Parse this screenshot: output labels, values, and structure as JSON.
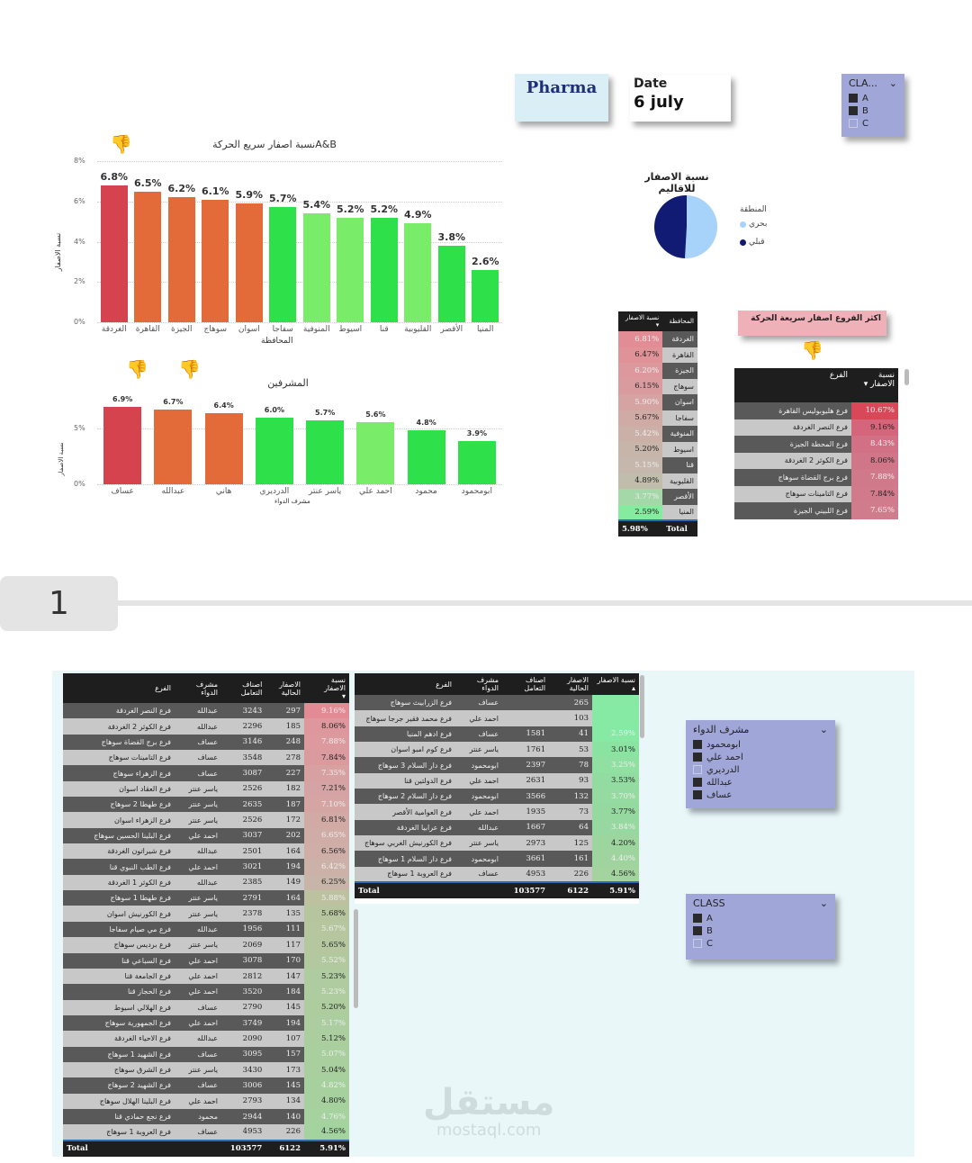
{
  "header": {
    "title": "Pharma",
    "date_label": "Date",
    "date_value": "6 july"
  },
  "class_slicer_top": {
    "title": "CLA...",
    "items": [
      {
        "label": "A",
        "checked": true
      },
      {
        "label": "B",
        "checked": true
      },
      {
        "label": "C",
        "checked": false
      }
    ]
  },
  "page_tab": {
    "number": "1"
  },
  "watermark": {
    "arabic": "مستقل",
    "english": "mostaql.com"
  },
  "chart_data": [
    {
      "type": "bar",
      "title": "نسبة اصفار سريع الحركةA&B",
      "xlabel": "المحافظة",
      "ylabel": "نسبة الاصفار",
      "ylim": [
        0,
        8
      ],
      "yticks": [
        "0%",
        "2%",
        "4%",
        "6%",
        "8%"
      ],
      "categories": [
        "الغردقة",
        "القاهرة",
        "الجيزة",
        "سوهاج",
        "اسوان",
        "سفاجا",
        "المنوفية",
        "اسيوط",
        "قنا",
        "القليوبية",
        "الأقصر",
        "المنيا"
      ],
      "values": [
        6.8,
        6.5,
        6.2,
        6.1,
        5.9,
        5.7,
        5.4,
        5.2,
        5.2,
        4.9,
        3.8,
        2.6
      ],
      "labels": [
        "6.8%",
        "6.5%",
        "6.2%",
        "6.1%",
        "5.9%",
        "5.7%",
        "5.4%",
        "5.2%",
        "5.2%",
        "4.9%",
        "3.8%",
        "2.6%"
      ],
      "colors": [
        "#d5434f",
        "#e36b3a",
        "#e36b3a",
        "#e36b3a",
        "#e36b3a",
        "#2ee04a",
        "#79ec6a",
        "#79ec6a",
        "#2ee04a",
        "#79ec6a",
        "#2ee04a",
        "#2ee04a"
      ],
      "grid": true
    },
    {
      "type": "bar",
      "title": "المشرفين",
      "xlabel": "مشرف الدواء",
      "ylabel": "نسبة الاصفار",
      "ylim": [
        0,
        7.5
      ],
      "yticks": [
        "0%",
        "5%"
      ],
      "categories": [
        "عساف",
        "عبدالله",
        "هاني",
        "الدرديري",
        "ياسر عنتر",
        "احمد علي",
        "محمود",
        "ابومحمود"
      ],
      "values": [
        6.9,
        6.7,
        6.4,
        6.0,
        5.7,
        5.6,
        4.8,
        3.9
      ],
      "labels": [
        "6.9%",
        "6.7%",
        "6.4%",
        "6.0%",
        "5.7%",
        "5.6%",
        "4.8%",
        "3.9%"
      ],
      "colors": [
        "#d5434f",
        "#e36b3a",
        "#e36b3a",
        "#2ee04a",
        "#2ee04a",
        "#79ec6a",
        "#2ee04a",
        "#2ee04a"
      ],
      "grid": true
    },
    {
      "type": "pie",
      "title": "نسبة الاصفار للاقاليم",
      "legend_title": "المنطقة",
      "categories": [
        "بحري",
        "قبلي"
      ],
      "values": [
        51,
        49
      ],
      "colors": [
        "#a7d3fb",
        "#121b73"
      ],
      "legend_position": "right"
    },
    {
      "type": "table",
      "title": "governorate-zero-rate",
      "columns": [
        "نسبة الاصفار",
        "المحافظة"
      ],
      "rows": [
        [
          "6.81%",
          "الغردقة"
        ],
        [
          "6.47%",
          "القاهرة"
        ],
        [
          "6.20%",
          "الجيزة"
        ],
        [
          "6.15%",
          "سوهاج"
        ],
        [
          "5.90%",
          "اسوان"
        ],
        [
          "5.67%",
          "سفاجا"
        ],
        [
          "5.42%",
          "المنوفية"
        ],
        [
          "5.20%",
          "اسيوط"
        ],
        [
          "5.15%",
          "قنا"
        ],
        [
          "4.89%",
          "القليوبية"
        ],
        [
          "3.77%",
          "الأقصر"
        ],
        [
          "2.59%",
          "المنيا"
        ]
      ],
      "total": [
        "5.98%",
        "Total"
      ]
    }
  ],
  "gov_table": {
    "headers": {
      "rate": "نسبة الاصفار",
      "gov": "المحافظة"
    },
    "rows": [
      {
        "gov": "الغردقة",
        "rate": "6.81%",
        "bg": "#e28c95"
      },
      {
        "gov": "القاهرة",
        "rate": "6.47%",
        "bg": "#e09299"
      },
      {
        "gov": "الجيزة",
        "rate": "6.20%",
        "bg": "#dc989c"
      },
      {
        "gov": "سوهاج",
        "rate": "6.15%",
        "bg": "#da9b9e"
      },
      {
        "gov": "اسوان",
        "rate": "5.90%",
        "bg": "#d5a3a2"
      },
      {
        "gov": "سفاجا",
        "rate": "5.67%",
        "bg": "#d0aaa5"
      },
      {
        "gov": "المنوفية",
        "rate": "5.42%",
        "bg": "#cbb0a8"
      },
      {
        "gov": "اسيوط",
        "rate": "5.20%",
        "bg": "#c7b5aa"
      },
      {
        "gov": "قنا",
        "rate": "5.15%",
        "bg": "#c5b7ab"
      },
      {
        "gov": "القليوبية",
        "rate": "4.89%",
        "bg": "#c0bdad"
      },
      {
        "gov": "الأقصر",
        "rate": "3.77%",
        "bg": "#a4d8a8"
      },
      {
        "gov": "المنيا",
        "rate": "2.59%",
        "bg": "#85eb9e"
      }
    ],
    "total_label": "Total",
    "total_value": "5.98%"
  },
  "top_branches": {
    "banner": "اكثر الفروع اصفار سريعة الحركة",
    "headers": {
      "branch": "الفرع",
      "rate": "نسبة الاصفار"
    },
    "rows": [
      {
        "branch": "فرع هليوبوليس القاهرة",
        "rate": "10.67%",
        "bg": "#d84858"
      },
      {
        "branch": "فرع النصر الغردقة",
        "rate": "9.16%",
        "bg": "#d4657a"
      },
      {
        "branch": "فرع المحطة الجيزة",
        "rate": "8.43%",
        "bg": "#d27085"
      },
      {
        "branch": "فرع الكوثر 2 الغردقة",
        "rate": "8.06%",
        "bg": "#d17688"
      },
      {
        "branch": "فرع برج القضاة سوهاج",
        "rate": "7.88%",
        "bg": "#d0798a"
      },
      {
        "branch": "فرع التامينات سوهاج",
        "rate": "7.84%",
        "bg": "#d07a8b"
      },
      {
        "branch": "فرع اللبيني الجيزة",
        "rate": "7.65%",
        "bg": "#cf7d8c"
      }
    ]
  },
  "detail_table_desc": {
    "headers": {
      "rate": "نسبة الاصفار",
      "zeros": "الاصفار الحالية",
      "items": "اصناف التعامل",
      "supervisor": "مشرف الدواء",
      "branch": "الفرع"
    },
    "rows": [
      {
        "branch": "فرع النصر الغردقة",
        "supervisor": "عبدالله",
        "items": "3243",
        "zeros": "297",
        "rate": "9.16%",
        "bg": "#e38b94"
      },
      {
        "branch": "فرع الكوثر 2 الغردقة",
        "supervisor": "عبدالله",
        "items": "2296",
        "zeros": "185",
        "rate": "8.06%",
        "bg": "#de979c"
      },
      {
        "branch": "فرع برج القضاة سوهاج",
        "supervisor": "عساف",
        "items": "3146",
        "zeros": "248",
        "rate": "7.88%",
        "bg": "#dc999e"
      },
      {
        "branch": "فرع التامينات سوهاج",
        "supervisor": "عساف",
        "items": "3548",
        "zeros": "278",
        "rate": "7.84%",
        "bg": "#db9a9e"
      },
      {
        "branch": "فرع الزهراء سوهاج",
        "supervisor": "عساف",
        "items": "3087",
        "zeros": "227",
        "rate": "7.35%",
        "bg": "#d7a1a1"
      },
      {
        "branch": "فرع العقاد اسوان",
        "supervisor": "ياسر عنتر",
        "items": "2526",
        "zeros": "182",
        "rate": "7.21%",
        "bg": "#d5a3a3"
      },
      {
        "branch": "فرع طهطا 2 سوهاج",
        "supervisor": "ياسر عنتر",
        "items": "2635",
        "zeros": "187",
        "rate": "7.10%",
        "bg": "#d4a5a3"
      },
      {
        "branch": "فرع الزهراء اسوان",
        "supervisor": "ياسر عنتر",
        "items": "2526",
        "zeros": "172",
        "rate": "6.81%",
        "bg": "#d1aaa5"
      },
      {
        "branch": "فرع البلينا الحسين سوهاج",
        "supervisor": "احمد علي",
        "items": "3037",
        "zeros": "202",
        "rate": "6.65%",
        "bg": "#cfaca6"
      },
      {
        "branch": "فرع شيراتون الغردقة",
        "supervisor": "عبدالله",
        "items": "2501",
        "zeros": "164",
        "rate": "6.56%",
        "bg": "#ceaea7"
      },
      {
        "branch": "فرع الطب النبوي قنا",
        "supervisor": "احمد علي",
        "items": "3021",
        "zeros": "194",
        "rate": "6.42%",
        "bg": "#cbb1a8"
      },
      {
        "branch": "فرع الكوثر 1 الغردقة",
        "supervisor": "عبدالله",
        "items": "2385",
        "zeros": "149",
        "rate": "6.25%",
        "bg": "#c8b5aa"
      },
      {
        "branch": "فرع طهطا 1 سوهاج",
        "supervisor": "ياسر عنتر",
        "items": "2791",
        "zeros": "164",
        "rate": "5.88%",
        "bg": "#bcc2a0"
      },
      {
        "branch": "فرع الكورنيش اسوان",
        "supervisor": "ياسر عنتر",
        "items": "2378",
        "zeros": "135",
        "rate": "5.68%",
        "bg": "#b7c59f"
      },
      {
        "branch": "فرع مي صيام سفاجا",
        "supervisor": "عبدالله",
        "items": "1956",
        "zeros": "111",
        "rate": "5.67%",
        "bg": "#b6c69f"
      },
      {
        "branch": "فرع برديس سوهاج",
        "supervisor": "ياسر عنتر",
        "items": "2069",
        "zeros": "117",
        "rate": "5.65%",
        "bg": "#b5c79f"
      },
      {
        "branch": "فرع السباعي قنا",
        "supervisor": "احمد علي",
        "items": "3078",
        "zeros": "170",
        "rate": "5.52%",
        "bg": "#b2c99f"
      },
      {
        "branch": "فرع الجامعة قنا",
        "supervisor": "احمد علي",
        "items": "2812",
        "zeros": "147",
        "rate": "5.23%",
        "bg": "#aecc9f"
      },
      {
        "branch": "فرع الحجاز قنا",
        "supervisor": "احمد علي",
        "items": "3520",
        "zeros": "184",
        "rate": "5.23%",
        "bg": "#aecc9f"
      },
      {
        "branch": "فرع الهلالي اسيوط",
        "supervisor": "عساف",
        "items": "2790",
        "zeros": "145",
        "rate": "5.20%",
        "bg": "#adcd9f"
      },
      {
        "branch": "فرع الجمهورية سوهاج",
        "supervisor": "احمد علي",
        "items": "3749",
        "zeros": "194",
        "rate": "5.17%",
        "bg": "#accd9f"
      },
      {
        "branch": "فرع الاحياء الغردقة",
        "supervisor": "عبدالله",
        "items": "2090",
        "zeros": "107",
        "rate": "5.12%",
        "bg": "#abce9f"
      },
      {
        "branch": "فرع الشهيد 1 سوهاج",
        "supervisor": "عساف",
        "items": "3095",
        "zeros": "157",
        "rate": "5.07%",
        "bg": "#aacf9f"
      },
      {
        "branch": "فرع الشرق سوهاج",
        "supervisor": "ياسر عنتر",
        "items": "3430",
        "zeros": "173",
        "rate": "5.04%",
        "bg": "#a9cf9f"
      },
      {
        "branch": "فرع الشهيد 2 سوهاج",
        "supervisor": "عساف",
        "items": "3006",
        "zeros": "145",
        "rate": "4.82%",
        "bg": "#a6d19f"
      },
      {
        "branch": "فرع البلينا الهلال سوهاج",
        "supervisor": "احمد علي",
        "items": "2793",
        "zeros": "134",
        "rate": "4.80%",
        "bg": "#a6d19f"
      },
      {
        "branch": "فرع نجع حمادي قنا",
        "supervisor": "محمود",
        "items": "2944",
        "zeros": "140",
        "rate": "4.76%",
        "bg": "#a5d29f"
      },
      {
        "branch": "فرع العروبة 1 سوهاج",
        "supervisor": "عساف",
        "items": "4953",
        "zeros": "226",
        "rate": "4.56%",
        "bg": "#a3d49f"
      }
    ],
    "total": {
      "label": "Total",
      "items": "103577",
      "zeros": "6122",
      "rate": "5.91%"
    }
  },
  "detail_table_asc": {
    "headers": {
      "rate": "نسبة الاصفار",
      "zeros": "الاصفار الحالية",
      "items": "اصناف التعامل",
      "supervisor": "مشرف الدواء",
      "branch": "الفرع"
    },
    "rows": [
      {
        "branch": "فرع الزرابيث سوهاج",
        "supervisor": "عساف",
        "items": "",
        "zeros": "265",
        "rate": "",
        "bg": "#86e9a4"
      },
      {
        "branch": "فرع محمد فقير جرجا سوهاج",
        "supervisor": "احمد علي",
        "items": "",
        "zeros": "103",
        "rate": "",
        "bg": "#86e9a4"
      },
      {
        "branch": "فرع ادهم المنيا",
        "supervisor": "عساف",
        "items": "1581",
        "zeros": "41",
        "rate": "2.59%",
        "bg": "#86e9a4"
      },
      {
        "branch": "فرع كوم امبو اسوان",
        "supervisor": "ياسر عنتر",
        "items": "1761",
        "zeros": "53",
        "rate": "3.01%",
        "bg": "#8be3a2"
      },
      {
        "branch": "فرع دار السلام 3 سوهاج",
        "supervisor": "ابومحمود",
        "items": "2397",
        "zeros": "78",
        "rate": "3.25%",
        "bg": "#8fe0a1"
      },
      {
        "branch": "فرع الدولتين قنا",
        "supervisor": "احمد علي",
        "items": "2631",
        "zeros": "93",
        "rate": "3.53%",
        "bg": "#93dca1"
      },
      {
        "branch": "فرع دار السلام 2 سوهاج",
        "supervisor": "ابومحمود",
        "items": "3566",
        "zeros": "132",
        "rate": "3.70%",
        "bg": "#95daa0"
      },
      {
        "branch": "فرع العوامية الأقصر",
        "supervisor": "احمد علي",
        "items": "1935",
        "zeros": "73",
        "rate": "3.77%",
        "bg": "#96d9a0"
      },
      {
        "branch": "فرع عرابيا الغردقة",
        "supervisor": "عبدالله",
        "items": "1667",
        "zeros": "64",
        "rate": "3.84%",
        "bg": "#97d8a0"
      },
      {
        "branch": "فرع الكورنيش الغربي سوهاج",
        "supervisor": "ياسر عنتر",
        "items": "2973",
        "zeros": "125",
        "rate": "4.20%",
        "bg": "#9dd59f"
      },
      {
        "branch": "فرع دار السلام 1 سوهاج",
        "supervisor": "ابومحمود",
        "items": "3661",
        "zeros": "161",
        "rate": "4.40%",
        "bg": "#a0d49f"
      },
      {
        "branch": "فرع العروبة 1 سوهاج",
        "supervisor": "عساف",
        "items": "4953",
        "zeros": "226",
        "rate": "4.56%",
        "bg": "#a3d49f"
      }
    ],
    "total": {
      "label": "Total",
      "items": "103577",
      "zeros": "6122",
      "rate": "5.91%"
    }
  },
  "supervisor_slicer": {
    "title": "مشرف الدواء",
    "items": [
      {
        "label": "ابومحمود",
        "checked": true
      },
      {
        "label": "احمد علي",
        "checked": true
      },
      {
        "label": "الدرديري",
        "checked": false
      },
      {
        "label": "عبدالله",
        "checked": true
      },
      {
        "label": "عساف",
        "checked": true
      },
      {
        "label": "",
        "checked": true
      }
    ]
  },
  "class_slicer_bottom": {
    "title": "CLASS",
    "items": [
      {
        "label": "A",
        "checked": true
      },
      {
        "label": "B",
        "checked": true
      },
      {
        "label": "C",
        "checked": false
      }
    ]
  }
}
